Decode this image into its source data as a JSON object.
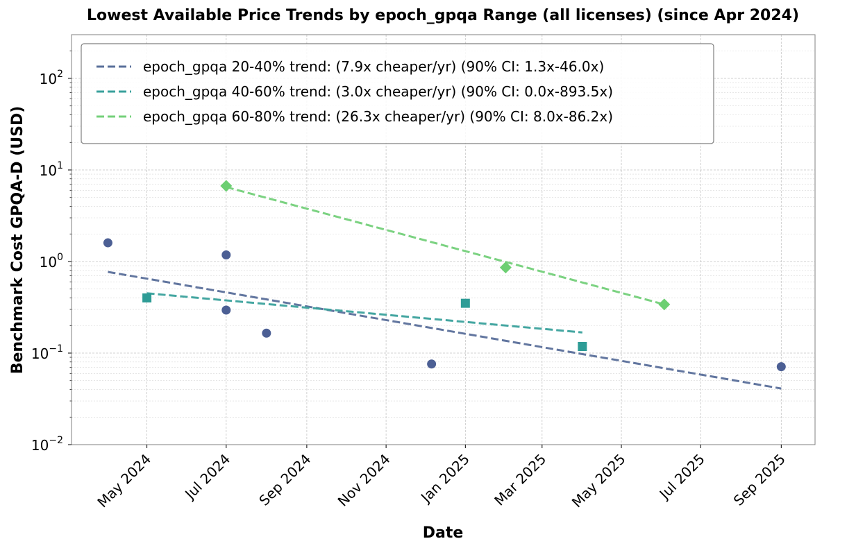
{
  "chart_data": {
    "type": "scatter",
    "title": "Lowest Available Price Trends by epoch_gpqa Range (all licenses) (since Apr 2024)",
    "xlabel": "Date",
    "ylabel": "Benchmark Cost GPQA-D (USD)",
    "x_tick_labels": [
      "May 2024",
      "Jul 2024",
      "Sep 2024",
      "Nov 2024",
      "Jan 2025",
      "Mar 2025",
      "May 2025",
      "Jul 2025",
      "Sep 2025"
    ],
    "x_tick_dates": [
      "2024-05-01",
      "2024-07-01",
      "2024-09-01",
      "2024-11-01",
      "2025-01-01",
      "2025-03-01",
      "2025-05-01",
      "2025-07-01",
      "2025-09-01"
    ],
    "xlim": [
      "2024-03-04",
      "2025-09-27"
    ],
    "y_scale": "log",
    "ylim": [
      0.01,
      300
    ],
    "y_ticks": [
      {
        "value": 0.01,
        "mantissa": "10",
        "exponent": "−2"
      },
      {
        "value": 0.1,
        "mantissa": "10",
        "exponent": "−1"
      },
      {
        "value": 1,
        "mantissa": "10",
        "exponent": "0"
      },
      {
        "value": 10,
        "mantissa": "10",
        "exponent": "1"
      },
      {
        "value": 100,
        "mantissa": "10",
        "exponent": "2"
      }
    ],
    "grid": true,
    "legend_position": "upper-left",
    "series": [
      {
        "name": "epoch_gpqa 20-40%",
        "color": "#4c5f94",
        "marker": "circle",
        "points": [
          {
            "x": "2024-04-01",
            "y": 1.6
          },
          {
            "x": "2024-07-01",
            "y": 1.18
          },
          {
            "x": "2024-07-01",
            "y": 0.295
          },
          {
            "x": "2024-08-01",
            "y": 0.165
          },
          {
            "x": "2024-12-06",
            "y": 0.076
          },
          {
            "x": "2025-09-01",
            "y": 0.071
          }
        ],
        "trend": {
          "label": "epoch_gpqa 20-40% trend: (7.9x cheaper/yr) (90% CI: 1.3x-46.0x)",
          "color": "#5a6f9a",
          "start": {
            "x": "2024-04-01",
            "y": 0.77
          },
          "end": {
            "x": "2025-09-01",
            "y": 0.041
          }
        }
      },
      {
        "name": "epoch_gpqa 40-60%",
        "color": "#2e9c96",
        "marker": "square",
        "points": [
          {
            "x": "2024-05-01",
            "y": 0.4
          },
          {
            "x": "2025-01-01",
            "y": 0.35
          },
          {
            "x": "2025-04-01",
            "y": 0.118
          }
        ],
        "trend": {
          "label": "epoch_gpqa 40-60% trend: (3.0x cheaper/yr) (90% CI: 0.0x-893.5x)",
          "color": "#3aa19c",
          "start": {
            "x": "2024-05-01",
            "y": 0.45
          },
          "end": {
            "x": "2025-04-01",
            "y": 0.168
          }
        }
      },
      {
        "name": "epoch_gpqa 60-80%",
        "color": "#6ccf72",
        "marker": "diamond",
        "points": [
          {
            "x": "2024-07-01",
            "y": 6.7
          },
          {
            "x": "2025-02-01",
            "y": 0.86
          },
          {
            "x": "2025-06-03",
            "y": 0.34
          }
        ],
        "trend": {
          "label": "epoch_gpqa 60-80% trend: (26.3x cheaper/yr) (90% CI: 8.0x-86.2x)",
          "color": "#74d07a",
          "start": {
            "x": "2024-07-01",
            "y": 6.5
          },
          "end": {
            "x": "2025-06-03",
            "y": 0.34
          }
        }
      }
    ]
  }
}
